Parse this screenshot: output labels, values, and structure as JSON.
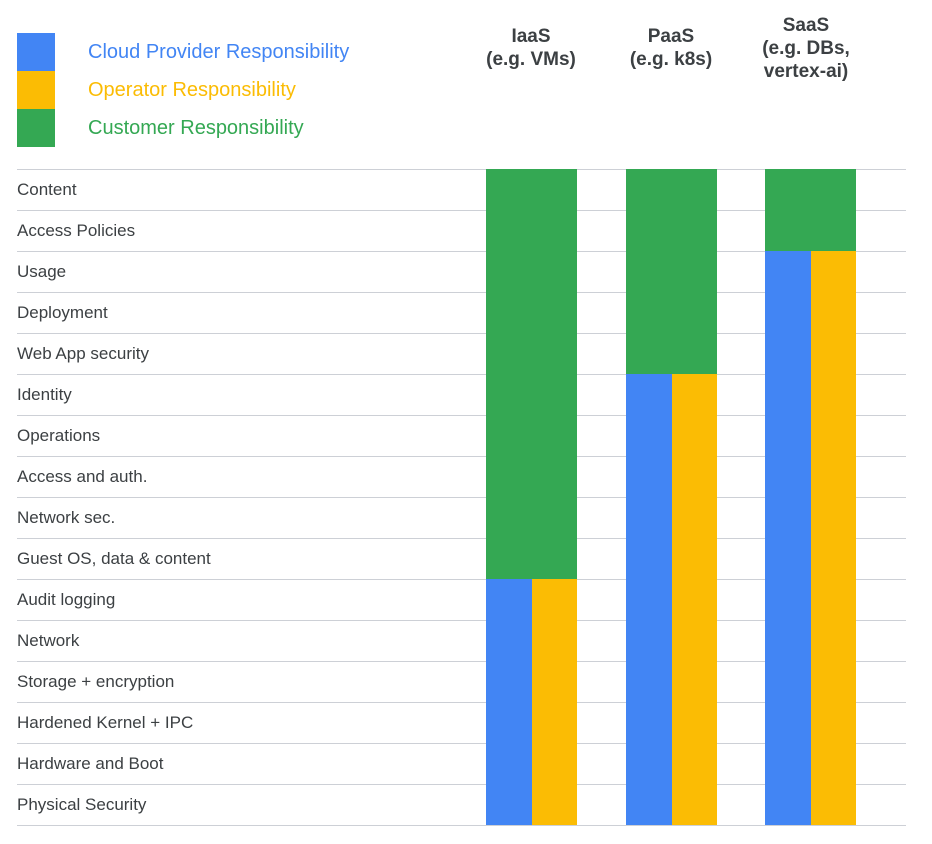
{
  "colors": {
    "cloud_provider": "#4285F4",
    "operator": "#FBBC04",
    "customer": "#34A853",
    "header_text": "#3C4043",
    "row_text": "#3C4043",
    "grid_line": "#CDD0D6",
    "background": "#FFFFFF"
  },
  "legend": {
    "items": [
      {
        "id": "cloud-provider",
        "label": "Cloud Provider Responsibility",
        "color": "#4285F4"
      },
      {
        "id": "operator",
        "label": "Operator Responsibility",
        "color": "#FBBC04"
      },
      {
        "id": "customer",
        "label": "Customer Responsibility",
        "color": "#34A853"
      }
    ]
  },
  "columns": [
    {
      "id": "iaas",
      "title": "IaaS",
      "subtitle": "(e.g. VMs)",
      "customer_rows_from_top": 10
    },
    {
      "id": "paas",
      "title": "PaaS",
      "subtitle": "(e.g. k8s)",
      "customer_rows_from_top": 5
    },
    {
      "id": "saas",
      "title": "SaaS",
      "subtitle": "(e.g. DBs,\nvertex-ai)",
      "customer_rows_from_top": 2
    }
  ],
  "rows": [
    "Content",
    "Access Policies",
    "Usage",
    "Deployment",
    "Web App security",
    "Identity",
    "Operations",
    "Access and auth.",
    "Network sec.",
    "Guest OS, data & content",
    "Audit logging",
    "Network",
    "Storage + encryption",
    "Hardened Kernel + IPC",
    "Hardware and Boot",
    "Physical Security"
  ],
  "chart_data": {
    "type": "bar",
    "title": "",
    "categories": [
      "IaaS (e.g. VMs)",
      "PaaS (e.g. k8s)",
      "SaaS (e.g. DBs, vertex-ai)"
    ],
    "layers_top_to_bottom": [
      "Content",
      "Access Policies",
      "Usage",
      "Deployment",
      "Web App security",
      "Identity",
      "Operations",
      "Access and auth.",
      "Network sec.",
      "Guest OS, data & content",
      "Audit logging",
      "Network",
      "Storage + encryption",
      "Hardened Kernel + IPC",
      "Hardware and Boot",
      "Physical Security"
    ],
    "series": [
      {
        "name": "Customer Responsibility",
        "color": "#34A853",
        "layer_counts_from_top": [
          10,
          5,
          2
        ]
      },
      {
        "name": "Cloud Provider Responsibility",
        "color": "#4285F4",
        "layer_counts_from_bottom": [
          6,
          11,
          14
        ]
      },
      {
        "name": "Operator Responsibility",
        "color": "#FBBC04",
        "layer_counts_from_bottom": [
          6,
          11,
          14
        ]
      }
    ],
    "legend_position": "top-left",
    "notes": "Customer (green) covers the upper layers full-width; below the split line, Cloud Provider (blue, left half) and Operator (yellow, right half) sit side-by-side down to Physical Security."
  }
}
